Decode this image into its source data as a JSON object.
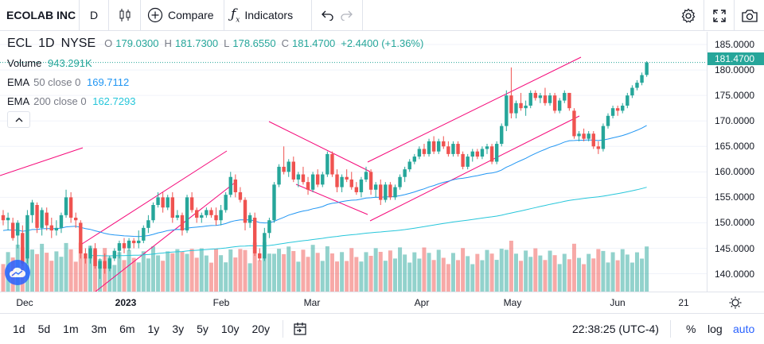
{
  "toolbar": {
    "symbol": "ECOLAB INC",
    "interval": "D",
    "compare_label": "Compare",
    "indicators_label": "Indicators"
  },
  "legend": {
    "ticker": "ECL",
    "interval": "1D",
    "exchange": "NYSE",
    "open_key": "O",
    "open": "179.0300",
    "high_key": "H",
    "high": "181.7300",
    "low_key": "L",
    "low": "178.6550",
    "close_key": "C",
    "close": "181.4700",
    "change": "+2.4400 (+1.36%)",
    "volume_label": "Volume",
    "volume": "943.291K",
    "ema1_label": "EMA",
    "ema1_params": "50 close 0",
    "ema1_value": "169.7112",
    "ema2_label": "EMA",
    "ema2_params": "200 close 0",
    "ema2_value": "162.7293"
  },
  "price_axis": [
    "185.0000",
    "180.0000",
    "175.0000",
    "170.0000",
    "165.0000",
    "160.0000",
    "155.0000",
    "150.0000",
    "145.0000",
    "140.0000"
  ],
  "last_price": "181.4700",
  "time_axis": [
    {
      "label": "Dec",
      "bold": false
    },
    {
      "label": "2023",
      "bold": true
    },
    {
      "label": "Feb",
      "bold": false
    },
    {
      "label": "Mar",
      "bold": false
    },
    {
      "label": "Apr",
      "bold": false
    },
    {
      "label": "May",
      "bold": false
    },
    {
      "label": "Jun",
      "bold": false
    },
    {
      "label": "21",
      "bold": false
    }
  ],
  "ranges": [
    "1d",
    "5d",
    "1m",
    "3m",
    "6m",
    "1y",
    "3y",
    "5y",
    "10y",
    "20y"
  ],
  "bottom": {
    "clock": "22:38:25 (UTC-4)",
    "percent": "%",
    "log": "log",
    "auto": "auto"
  },
  "colors": {
    "up": "#26a69a",
    "down": "#ef5350",
    "ema50": "#2196f3",
    "ema200": "#26c6da",
    "channel": "#f50a7a",
    "accent": "#2962ff"
  },
  "chart_data": {
    "type": "candlestick",
    "ylim": [
      136.5,
      187.5
    ],
    "series": [
      {
        "o": 151.5,
        "h": 152.5,
        "l": 149.5,
        "c": 150.5
      },
      {
        "o": 150.5,
        "h": 152.0,
        "l": 148.5,
        "c": 151.0
      },
      {
        "o": 150.0,
        "h": 151.0,
        "l": 146.5,
        "c": 147.0
      },
      {
        "o": 147.5,
        "h": 150.5,
        "l": 145.0,
        "c": 150.0
      },
      {
        "o": 148.0,
        "h": 149.5,
        "l": 141.5,
        "c": 142.0
      },
      {
        "o": 143.0,
        "h": 152.5,
        "l": 142.0,
        "c": 151.5
      },
      {
        "o": 151.5,
        "h": 154.5,
        "l": 150.0,
        "c": 154.0
      },
      {
        "o": 153.5,
        "h": 154.0,
        "l": 148.0,
        "c": 149.0
      },
      {
        "o": 149.0,
        "h": 153.0,
        "l": 147.5,
        "c": 152.5
      },
      {
        "o": 152.0,
        "h": 153.0,
        "l": 148.5,
        "c": 149.5
      },
      {
        "o": 149.5,
        "h": 151.0,
        "l": 147.0,
        "c": 148.5
      },
      {
        "o": 148.5,
        "h": 150.5,
        "l": 147.5,
        "c": 149.0
      },
      {
        "o": 149.0,
        "h": 152.0,
        "l": 148.0,
        "c": 151.5
      },
      {
        "o": 151.5,
        "h": 156.5,
        "l": 151.0,
        "c": 155.0
      },
      {
        "o": 155.0,
        "h": 156.0,
        "l": 150.0,
        "c": 151.0
      },
      {
        "o": 151.0,
        "h": 152.0,
        "l": 149.0,
        "c": 150.5
      },
      {
        "o": 150.0,
        "h": 150.5,
        "l": 143.0,
        "c": 144.0
      },
      {
        "o": 144.0,
        "h": 145.0,
        "l": 142.0,
        "c": 143.0
      },
      {
        "o": 143.0,
        "h": 145.5,
        "l": 142.0,
        "c": 145.0
      },
      {
        "o": 145.0,
        "h": 146.0,
        "l": 141.0,
        "c": 141.5
      },
      {
        "o": 141.0,
        "h": 143.0,
        "l": 139.0,
        "c": 142.5
      },
      {
        "o": 142.5,
        "h": 144.0,
        "l": 140.0,
        "c": 141.0
      },
      {
        "o": 141.0,
        "h": 143.5,
        "l": 140.5,
        "c": 143.0
      },
      {
        "o": 143.0,
        "h": 145.0,
        "l": 142.5,
        "c": 144.5
      },
      {
        "o": 144.5,
        "h": 146.5,
        "l": 143.0,
        "c": 146.0
      },
      {
        "o": 146.0,
        "h": 147.0,
        "l": 144.0,
        "c": 145.0
      },
      {
        "o": 145.0,
        "h": 147.0,
        "l": 144.5,
        "c": 146.5
      },
      {
        "o": 146.5,
        "h": 147.0,
        "l": 145.0,
        "c": 146.0
      },
      {
        "o": 146.0,
        "h": 148.5,
        "l": 145.0,
        "c": 146.5
      },
      {
        "o": 146.5,
        "h": 149.5,
        "l": 146.0,
        "c": 149.0
      },
      {
        "o": 149.0,
        "h": 151.5,
        "l": 148.0,
        "c": 150.5
      },
      {
        "o": 150.5,
        "h": 154.0,
        "l": 150.0,
        "c": 153.5
      },
      {
        "o": 153.5,
        "h": 156.0,
        "l": 153.0,
        "c": 155.0
      },
      {
        "o": 155.0,
        "h": 156.0,
        "l": 152.0,
        "c": 153.0
      },
      {
        "o": 153.0,
        "h": 155.5,
        "l": 152.5,
        "c": 155.0
      },
      {
        "o": 155.0,
        "h": 156.0,
        "l": 150.0,
        "c": 151.0
      },
      {
        "o": 151.0,
        "h": 152.5,
        "l": 150.5,
        "c": 151.5
      },
      {
        "o": 151.5,
        "h": 152.0,
        "l": 147.5,
        "c": 148.5
      },
      {
        "o": 148.5,
        "h": 155.5,
        "l": 148.0,
        "c": 155.0
      },
      {
        "o": 155.0,
        "h": 156.0,
        "l": 152.0,
        "c": 152.5
      },
      {
        "o": 152.5,
        "h": 153.0,
        "l": 150.0,
        "c": 151.0
      },
      {
        "o": 151.0,
        "h": 152.0,
        "l": 150.0,
        "c": 151.5
      },
      {
        "o": 151.5,
        "h": 153.0,
        "l": 151.0,
        "c": 152.5
      },
      {
        "o": 152.5,
        "h": 153.0,
        "l": 151.0,
        "c": 151.5
      },
      {
        "o": 151.5,
        "h": 153.0,
        "l": 149.5,
        "c": 150.5
      },
      {
        "o": 150.5,
        "h": 153.5,
        "l": 149.5,
        "c": 152.5
      },
      {
        "o": 152.5,
        "h": 156.0,
        "l": 152.0,
        "c": 155.5
      },
      {
        "o": 155.5,
        "h": 160.0,
        "l": 155.0,
        "c": 159.0
      },
      {
        "o": 158.5,
        "h": 159.5,
        "l": 155.0,
        "c": 156.0
      },
      {
        "o": 156.0,
        "h": 157.0,
        "l": 154.0,
        "c": 154.5
      },
      {
        "o": 154.5,
        "h": 155.0,
        "l": 148.5,
        "c": 150.0
      },
      {
        "o": 150.0,
        "h": 152.0,
        "l": 149.0,
        "c": 151.5
      },
      {
        "o": 151.0,
        "h": 152.0,
        "l": 143.5,
        "c": 144.0
      },
      {
        "o": 144.0,
        "h": 145.0,
        "l": 142.5,
        "c": 143.0
      },
      {
        "o": 143.0,
        "h": 149.0,
        "l": 142.5,
        "c": 148.0
      },
      {
        "o": 148.0,
        "h": 151.0,
        "l": 147.0,
        "c": 150.5
      },
      {
        "o": 150.5,
        "h": 158.0,
        "l": 150.0,
        "c": 157.5
      },
      {
        "o": 157.5,
        "h": 161.5,
        "l": 157.0,
        "c": 161.0
      },
      {
        "o": 161.0,
        "h": 165.0,
        "l": 159.5,
        "c": 160.0
      },
      {
        "o": 160.0,
        "h": 162.5,
        "l": 159.0,
        "c": 162.0
      },
      {
        "o": 162.0,
        "h": 163.0,
        "l": 158.0,
        "c": 158.5
      },
      {
        "o": 158.5,
        "h": 160.0,
        "l": 157.0,
        "c": 159.5
      },
      {
        "o": 159.5,
        "h": 161.0,
        "l": 157.5,
        "c": 158.0
      },
      {
        "o": 158.0,
        "h": 159.0,
        "l": 155.5,
        "c": 156.5
      },
      {
        "o": 156.5,
        "h": 160.0,
        "l": 156.0,
        "c": 159.5
      },
      {
        "o": 159.5,
        "h": 160.5,
        "l": 157.0,
        "c": 157.5
      },
      {
        "o": 157.5,
        "h": 160.0,
        "l": 157.0,
        "c": 159.5
      },
      {
        "o": 159.5,
        "h": 164.0,
        "l": 159.0,
        "c": 163.5
      },
      {
        "o": 163.5,
        "h": 164.0,
        "l": 159.0,
        "c": 159.5
      },
      {
        "o": 159.5,
        "h": 160.5,
        "l": 156.0,
        "c": 157.0
      },
      {
        "o": 157.0,
        "h": 159.5,
        "l": 156.0,
        "c": 159.0
      },
      {
        "o": 159.0,
        "h": 160.5,
        "l": 158.0,
        "c": 158.5
      },
      {
        "o": 158.5,
        "h": 160.0,
        "l": 156.5,
        "c": 157.0
      },
      {
        "o": 157.0,
        "h": 158.0,
        "l": 155.5,
        "c": 156.0
      },
      {
        "o": 156.0,
        "h": 159.0,
        "l": 155.0,
        "c": 158.5
      },
      {
        "o": 158.5,
        "h": 161.0,
        "l": 158.0,
        "c": 160.0
      },
      {
        "o": 160.0,
        "h": 160.5,
        "l": 155.5,
        "c": 156.5
      },
      {
        "o": 156.5,
        "h": 158.0,
        "l": 155.0,
        "c": 157.5
      },
      {
        "o": 157.5,
        "h": 158.5,
        "l": 153.5,
        "c": 154.5
      },
      {
        "o": 154.5,
        "h": 158.0,
        "l": 154.0,
        "c": 157.5
      },
      {
        "o": 157.5,
        "h": 158.0,
        "l": 154.5,
        "c": 155.0
      },
      {
        "o": 155.0,
        "h": 157.5,
        "l": 154.5,
        "c": 157.0
      },
      {
        "o": 157.0,
        "h": 159.5,
        "l": 156.5,
        "c": 159.0
      },
      {
        "o": 159.0,
        "h": 161.0,
        "l": 158.0,
        "c": 160.5
      },
      {
        "o": 160.5,
        "h": 162.5,
        "l": 160.0,
        "c": 162.0
      },
      {
        "o": 162.0,
        "h": 163.5,
        "l": 161.5,
        "c": 163.0
      },
      {
        "o": 163.0,
        "h": 165.0,
        "l": 162.5,
        "c": 164.5
      },
      {
        "o": 164.5,
        "h": 165.5,
        "l": 163.0,
        "c": 163.5
      },
      {
        "o": 163.5,
        "h": 166.5,
        "l": 163.0,
        "c": 166.0
      },
      {
        "o": 166.0,
        "h": 167.0,
        "l": 163.5,
        "c": 164.0
      },
      {
        "o": 164.0,
        "h": 166.5,
        "l": 163.5,
        "c": 166.0
      },
      {
        "o": 166.0,
        "h": 167.0,
        "l": 164.5,
        "c": 165.0
      },
      {
        "o": 165.0,
        "h": 166.0,
        "l": 163.0,
        "c": 163.5
      },
      {
        "o": 163.5,
        "h": 166.0,
        "l": 163.0,
        "c": 165.5
      },
      {
        "o": 165.5,
        "h": 166.0,
        "l": 163.0,
        "c": 163.5
      },
      {
        "o": 163.5,
        "h": 164.0,
        "l": 160.5,
        "c": 161.0
      },
      {
        "o": 161.0,
        "h": 163.5,
        "l": 160.5,
        "c": 163.0
      },
      {
        "o": 163.0,
        "h": 164.5,
        "l": 162.0,
        "c": 164.0
      },
      {
        "o": 164.0,
        "h": 164.5,
        "l": 162.5,
        "c": 163.0
      },
      {
        "o": 163.0,
        "h": 165.0,
        "l": 162.5,
        "c": 164.5
      },
      {
        "o": 164.5,
        "h": 165.5,
        "l": 163.5,
        "c": 165.0
      },
      {
        "o": 165.0,
        "h": 165.5,
        "l": 161.5,
        "c": 162.0
      },
      {
        "o": 162.0,
        "h": 166.0,
        "l": 161.5,
        "c": 165.5
      },
      {
        "o": 165.5,
        "h": 169.5,
        "l": 165.0,
        "c": 169.0
      },
      {
        "o": 169.0,
        "h": 176.0,
        "l": 168.0,
        "c": 175.0
      },
      {
        "o": 175.0,
        "h": 180.5,
        "l": 170.5,
        "c": 171.5
      },
      {
        "o": 171.5,
        "h": 174.0,
        "l": 170.5,
        "c": 173.5
      },
      {
        "o": 173.5,
        "h": 175.5,
        "l": 172.0,
        "c": 172.5
      },
      {
        "o": 172.5,
        "h": 174.0,
        "l": 171.0,
        "c": 173.0
      },
      {
        "o": 173.0,
        "h": 176.0,
        "l": 172.5,
        "c": 175.5
      },
      {
        "o": 175.5,
        "h": 176.0,
        "l": 174.0,
        "c": 174.5
      },
      {
        "o": 174.5,
        "h": 175.5,
        "l": 173.5,
        "c": 175.0
      },
      {
        "o": 175.0,
        "h": 176.5,
        "l": 173.0,
        "c": 173.5
      },
      {
        "o": 173.5,
        "h": 175.5,
        "l": 173.0,
        "c": 175.0
      },
      {
        "o": 175.0,
        "h": 175.5,
        "l": 171.5,
        "c": 172.0
      },
      {
        "o": 172.0,
        "h": 174.5,
        "l": 171.5,
        "c": 174.0
      },
      {
        "o": 174.0,
        "h": 176.0,
        "l": 173.5,
        "c": 175.5
      },
      {
        "o": 175.5,
        "h": 175.5,
        "l": 172.0,
        "c": 172.5
      },
      {
        "o": 172.0,
        "h": 172.5,
        "l": 166.5,
        "c": 167.0
      },
      {
        "o": 167.0,
        "h": 168.0,
        "l": 166.0,
        "c": 167.5
      },
      {
        "o": 167.5,
        "h": 168.5,
        "l": 166.0,
        "c": 166.5
      },
      {
        "o": 166.5,
        "h": 168.0,
        "l": 166.0,
        "c": 167.5
      },
      {
        "o": 167.5,
        "h": 168.0,
        "l": 164.5,
        "c": 165.0
      },
      {
        "o": 165.0,
        "h": 166.0,
        "l": 163.5,
        "c": 164.5
      },
      {
        "o": 164.5,
        "h": 169.5,
        "l": 164.0,
        "c": 169.0
      },
      {
        "o": 169.0,
        "h": 171.5,
        "l": 168.5,
        "c": 171.0
      },
      {
        "o": 171.0,
        "h": 173.0,
        "l": 170.5,
        "c": 172.5
      },
      {
        "o": 172.5,
        "h": 173.0,
        "l": 171.0,
        "c": 172.0
      },
      {
        "o": 172.0,
        "h": 173.5,
        "l": 171.5,
        "c": 173.0
      },
      {
        "o": 173.0,
        "h": 175.5,
        "l": 172.5,
        "c": 175.0
      },
      {
        "o": 175.0,
        "h": 177.0,
        "l": 174.5,
        "c": 176.5
      },
      {
        "o": 176.5,
        "h": 178.0,
        "l": 176.0,
        "c": 177.5
      },
      {
        "o": 177.5,
        "h": 179.5,
        "l": 177.0,
        "c": 179.0
      },
      {
        "o": 179.03,
        "h": 181.73,
        "l": 178.655,
        "c": 181.47
      }
    ]
  }
}
